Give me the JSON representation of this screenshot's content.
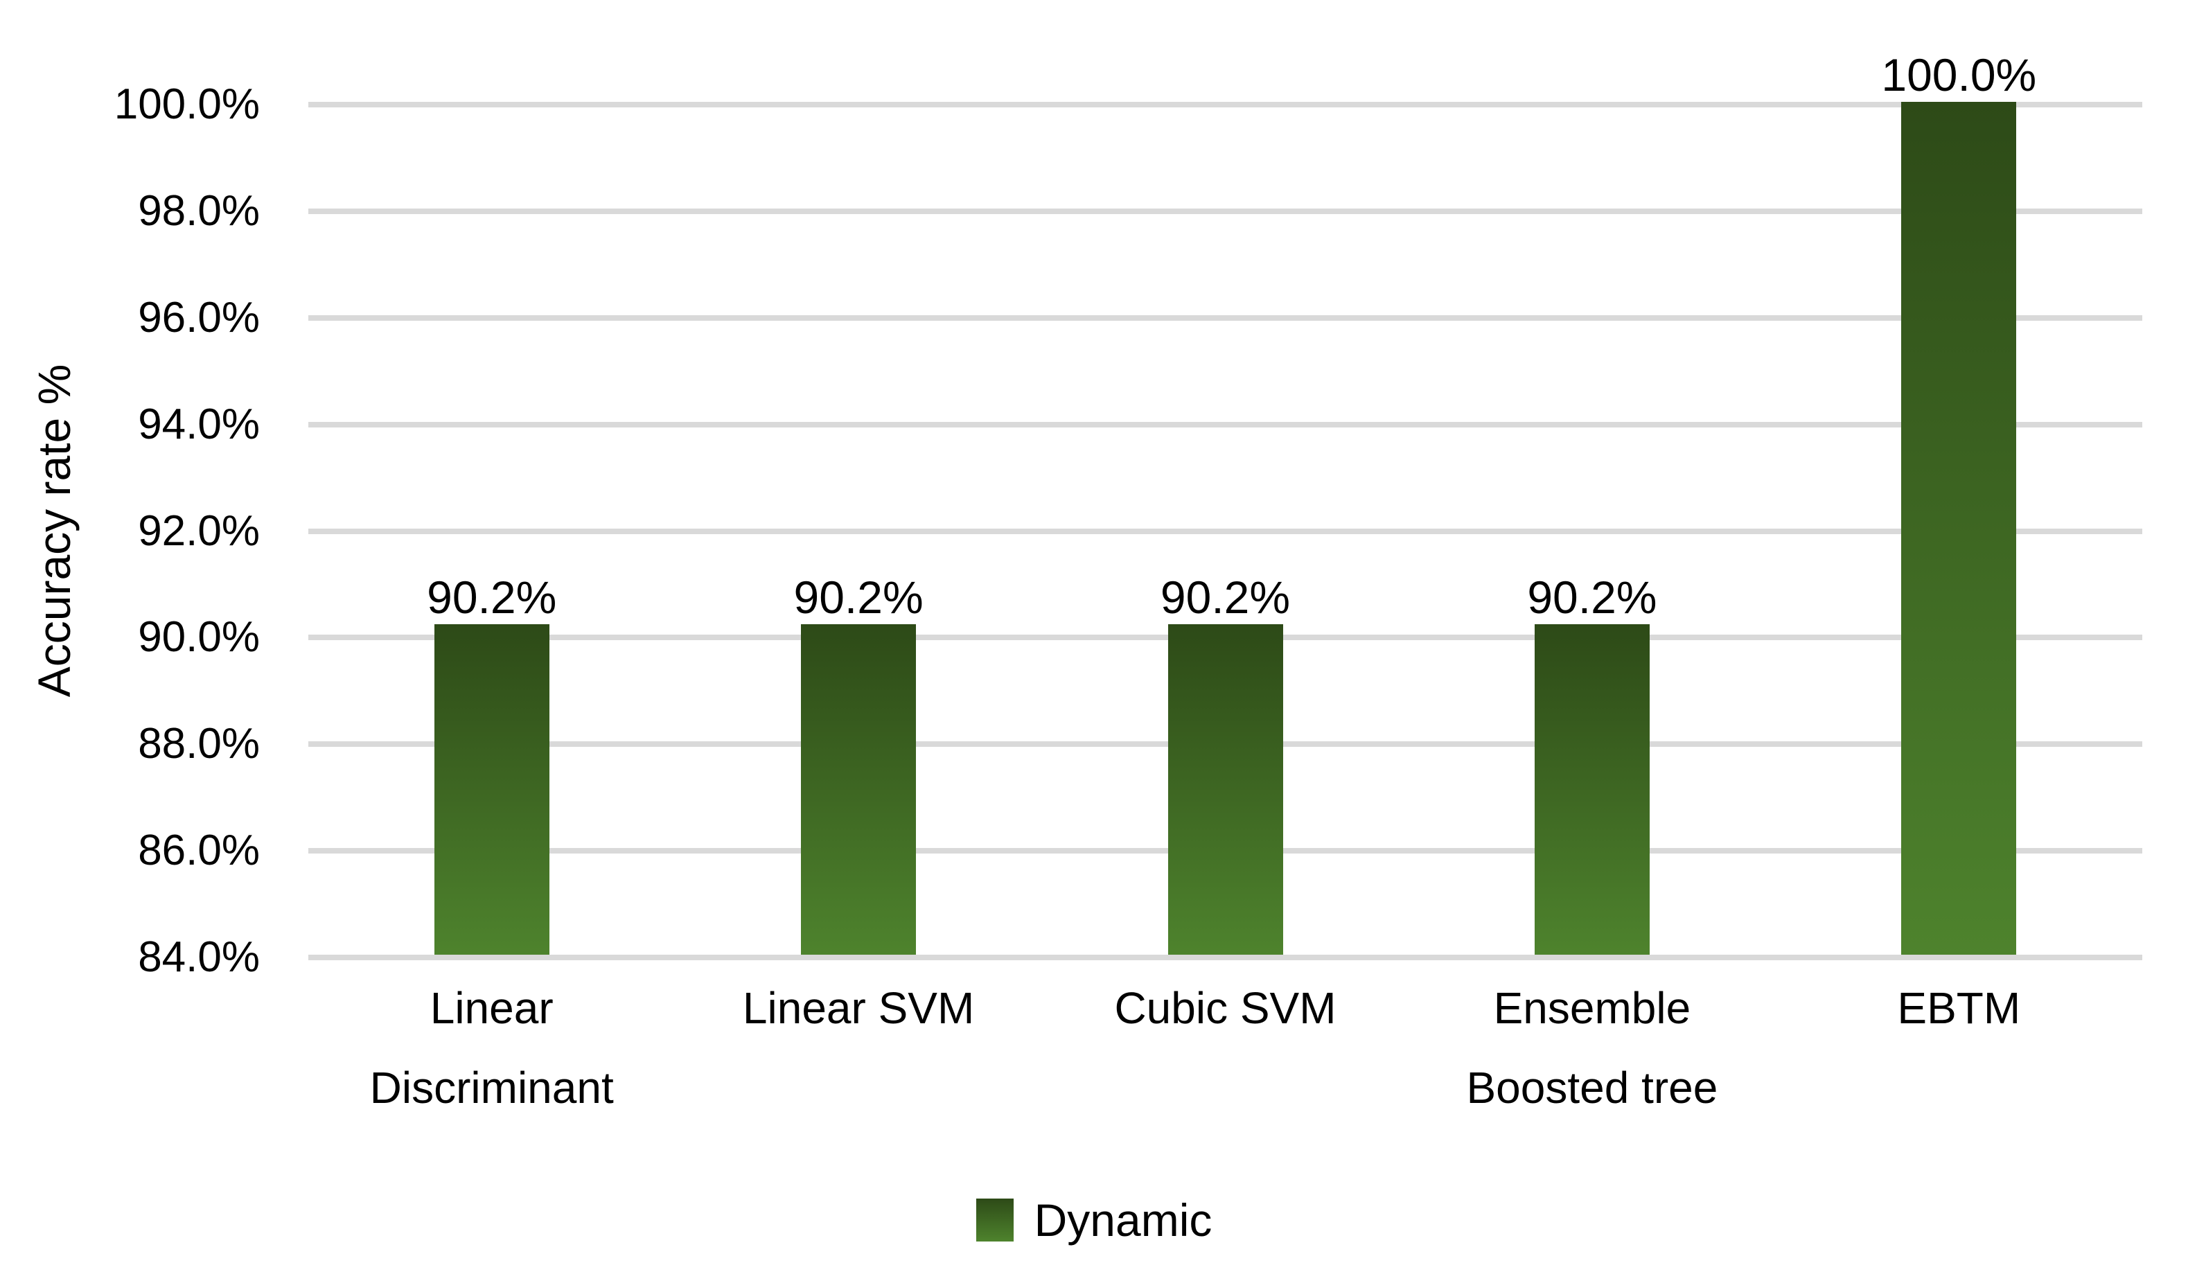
{
  "chart_data": {
    "type": "bar",
    "title": "",
    "xlabel": "",
    "ylabel": "Accuracy rate %",
    "categories": [
      "Linear Discriminant",
      "Linear SVM",
      "Cubic SVM",
      "Ensemble Boosted tree",
      "EBTM"
    ],
    "series": [
      {
        "name": "Dynamic",
        "values": [
          90.2,
          90.2,
          90.2,
          90.2,
          100.0
        ],
        "data_labels": [
          "90.2%",
          "90.2%",
          "90.2%",
          "90.2%",
          "100.0%"
        ]
      }
    ],
    "ylim": [
      84,
      100
    ],
    "ytick_step": 2,
    "ytick_labels": [
      "100.0%",
      "98.0%",
      "96.0%",
      "94.0%",
      "92.0%",
      "90.0%",
      "88.0%",
      "86.0%",
      "84.0%"
    ],
    "grid": true,
    "legend_position": "bottom",
    "colors": {
      "bar_gradient_top": "#2d4a17",
      "bar_gradient_bottom": "#4e832d",
      "gridline": "#d9d9d9",
      "text": "#000000",
      "background": "#ffffff"
    }
  }
}
